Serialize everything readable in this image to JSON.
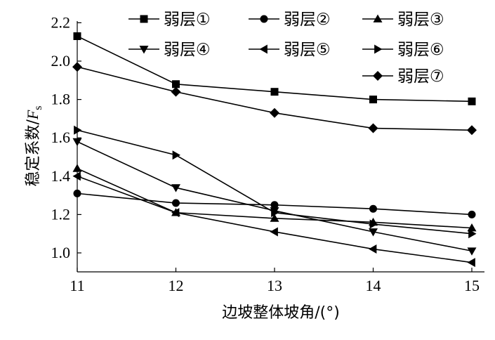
{
  "chart_data": {
    "type": "line",
    "title": "",
    "xlabel": "边坡整体坡角/(°)",
    "ylabel": "稳定系数/Fs",
    "ylabel_main": "稳定系数/",
    "ylabel_var": "F",
    "ylabel_sub": "s",
    "x": [
      11,
      12,
      13,
      14,
      15
    ],
    "x_tick_labels": [
      "11",
      "12",
      "13",
      "14",
      "15"
    ],
    "y_ticks": [
      1.0,
      1.2,
      1.4,
      1.6,
      1.8,
      2.0,
      2.2
    ],
    "y_tick_labels": [
      "1.0",
      "1.2",
      "1.4",
      "1.6",
      "1.8",
      "2.0",
      "2.2"
    ],
    "xlim": [
      11,
      15
    ],
    "ylim": [
      0.9,
      2.2
    ],
    "grid": false,
    "legend_position": "top-right",
    "series": [
      {
        "name": "弱层①",
        "marker": "square",
        "values": [
          2.13,
          1.88,
          1.84,
          1.8,
          1.79
        ]
      },
      {
        "name": "弱层②",
        "marker": "circle",
        "values": [
          1.31,
          1.26,
          1.25,
          1.23,
          1.2
        ]
      },
      {
        "name": "弱层③",
        "marker": "triangle-up",
        "values": [
          1.44,
          1.21,
          1.18,
          1.16,
          1.13
        ]
      },
      {
        "name": "弱层④",
        "marker": "triangle-down",
        "values": [
          1.58,
          1.34,
          1.22,
          1.11,
          1.01
        ]
      },
      {
        "name": "弱层⑤",
        "marker": "triangle-left",
        "values": [
          1.4,
          1.21,
          1.11,
          1.02,
          0.95
        ]
      },
      {
        "name": "弱层⑥",
        "marker": "triangle-right",
        "values": [
          1.64,
          1.51,
          1.21,
          1.15,
          1.1
        ]
      },
      {
        "name": "弱层⑦",
        "marker": "diamond",
        "values": [
          1.97,
          1.84,
          1.73,
          1.65,
          1.64
        ]
      }
    ]
  }
}
